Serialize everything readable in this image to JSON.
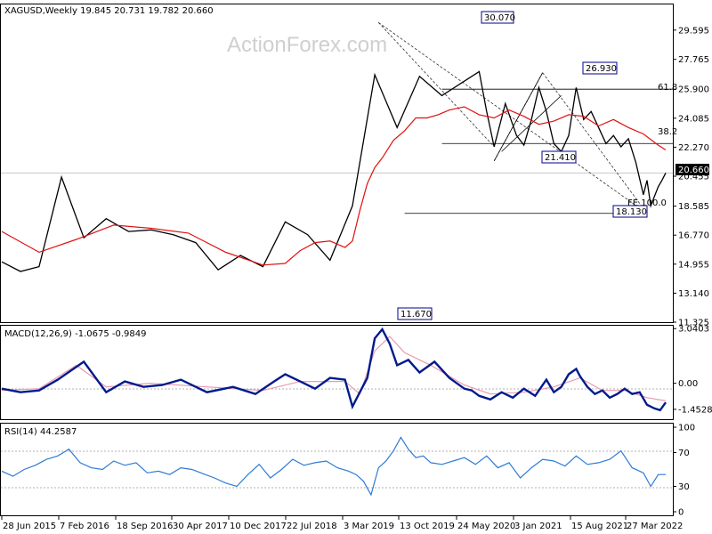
{
  "main_header": "XAGUSD,Weekly  19.845 20.731 19.782 20.660",
  "watermark": "ActionForex.com",
  "macd_header": "MACD(12,26,9) -1.0675 -0.9849",
  "rsi_header": "RSI(14) 44.2587",
  "current_price_label": "20.660",
  "colors": {
    "price": "#000000",
    "ma": "#e01010",
    "macd": "#001a8c",
    "signal": "#e89ab0",
    "rsi": "#2e7bd6",
    "level": "#00008b"
  },
  "chart_data": [
    {
      "type": "line",
      "title": "XAGUSD,Weekly",
      "ylim": [
        11.325,
        31.2
      ],
      "y_ticks": [
        "29.595",
        "27.765",
        "25.900",
        "24.085",
        "22.270",
        "20.455",
        "18.585",
        "16.770",
        "14.955",
        "13.140",
        "11.325"
      ],
      "x_ticks": [
        "28 Jun 2015",
        "7 Feb 2016",
        "18 Sep 2016",
        "30 Apr 2017",
        "10 Dec 2017",
        "22 Jul 2018",
        "3 Mar 2019",
        "13 Oct 2019",
        "24 May 2020",
        "3 Jan 2021",
        "15 Aug 2021",
        "27 Mar 2022"
      ],
      "x_range": [
        0,
        356
      ],
      "series": [
        {
          "name": "Close",
          "x": [
            0,
            10,
            20,
            32,
            44,
            56,
            68,
            80,
            92,
            104,
            116,
            128,
            140,
            152,
            164,
            176,
            188,
            200,
            212,
            224,
            236,
            248,
            256,
            260,
            264,
            270,
            276,
            280,
            284,
            288,
            292,
            296,
            300,
            304,
            308,
            312,
            316,
            320,
            324,
            328,
            332,
            336,
            340,
            344,
            346,
            348,
            350,
            352,
            354,
            356
          ],
          "values": [
            15.1,
            14.5,
            14.8,
            20.4,
            16.6,
            17.8,
            17.0,
            17.1,
            16.8,
            16.3,
            14.6,
            15.5,
            14.8,
            17.6,
            16.8,
            15.2,
            18.6,
            26.8,
            23.5,
            26.7,
            25.5,
            26.4,
            27.0,
            24.5,
            22.3,
            25.0,
            23.0,
            22.4,
            24.0,
            26.0,
            24.5,
            22.5,
            22.0,
            23.0,
            26.0,
            24.0,
            24.5,
            23.5,
            22.5,
            23.0,
            22.3,
            22.8,
            21.3,
            19.3,
            20.2,
            18.6,
            19.2,
            19.8,
            20.2,
            20.66
          ]
        },
        {
          "name": "MA",
          "x": [
            0,
            20,
            40,
            60,
            80,
            100,
            120,
            140,
            152,
            160,
            168,
            176,
            184,
            188,
            192,
            196,
            200,
            204,
            210,
            216,
            222,
            228,
            234,
            240,
            248,
            256,
            264,
            272,
            280,
            288,
            296,
            304,
            312,
            320,
            328,
            336,
            344,
            352,
            356
          ],
          "values": [
            17.0,
            15.7,
            16.5,
            17.4,
            17.2,
            16.9,
            15.7,
            14.9,
            15.0,
            15.8,
            16.3,
            16.4,
            16.0,
            16.4,
            18.3,
            20.0,
            21.0,
            21.6,
            22.7,
            23.3,
            24.1,
            24.1,
            24.3,
            24.6,
            24.8,
            24.3,
            24.1,
            24.6,
            24.2,
            23.7,
            23.9,
            24.3,
            24.2,
            23.6,
            24.0,
            23.5,
            23.1,
            22.4,
            22.1
          ]
        }
      ],
      "annotations": [
        "30.070",
        "26.930",
        "21.410",
        "18.130",
        "11.670",
        "61.8",
        "38.2",
        "FE 100.0"
      ],
      "levels": [
        {
          "label": "61.8",
          "value": 25.9
        },
        {
          "label": "38.2",
          "value": 22.5
        },
        {
          "label": "18.130",
          "value": 18.13
        },
        {
          "label": "21.410",
          "value": 21.41
        }
      ]
    },
    {
      "type": "line",
      "title": "MACD(12,26,9)",
      "ylim": [
        -2.0,
        3.2
      ],
      "y_ticks": [
        "3.0403",
        "0.00",
        "-1.4528"
      ],
      "series": [
        {
          "name": "MACD",
          "x": [
            0,
            10,
            20,
            30,
            44,
            56,
            66,
            76,
            86,
            96,
            110,
            124,
            136,
            146,
            152,
            160,
            168,
            176,
            184,
            188,
            192,
            196,
            200,
            204,
            208,
            212,
            218,
            224,
            232,
            240,
            248,
            252,
            256,
            262,
            268,
            274,
            280,
            286,
            292,
            296,
            300,
            304,
            308,
            310,
            314,
            318,
            322,
            326,
            330,
            334,
            338,
            342,
            346,
            350,
            353,
            356
          ],
          "values": [
            -0.3,
            -0.5,
            -0.4,
            0.2,
            1.2,
            -0.5,
            0.1,
            -0.2,
            -0.1,
            0.2,
            -0.5,
            -0.2,
            -0.6,
            0.1,
            0.5,
            0.1,
            -0.3,
            0.3,
            0.2,
            -1.3,
            -0.5,
            0.3,
            2.5,
            3.0,
            2.2,
            1.0,
            1.3,
            0.6,
            1.2,
            0.3,
            -0.3,
            -0.4,
            -0.7,
            -0.9,
            -0.5,
            -0.8,
            -0.3,
            -0.7,
            0.2,
            -0.5,
            -0.2,
            0.5,
            0.8,
            0.4,
            -0.2,
            -0.6,
            -0.4,
            -0.8,
            -0.6,
            -0.3,
            -0.6,
            -0.5,
            -1.2,
            -1.4,
            -1.5,
            -1.07
          ]
        },
        {
          "name": "Signal",
          "x": [
            0,
            20,
            40,
            56,
            80,
            110,
            140,
            160,
            184,
            192,
            200,
            208,
            216,
            230,
            248,
            262,
            280,
            296,
            310,
            322,
            334,
            346,
            356
          ],
          "values": [
            -0.4,
            -0.3,
            1.0,
            -0.2,
            0.0,
            -0.2,
            -0.4,
            0.1,
            0.1,
            -0.6,
            1.8,
            2.6,
            1.7,
            1.0,
            -0.1,
            -0.6,
            -0.5,
            -0.2,
            0.3,
            -0.4,
            -0.4,
            -0.8,
            -0.98
          ]
        }
      ]
    },
    {
      "type": "line",
      "title": "RSI(14)",
      "ylim": [
        0,
        100
      ],
      "y_ticks": [
        "100",
        "70",
        "30",
        "0"
      ],
      "series": [
        {
          "name": "RSI",
          "x": [
            0,
            6,
            12,
            18,
            24,
            30,
            36,
            42,
            48,
            54,
            60,
            66,
            72,
            78,
            84,
            90,
            96,
            102,
            108,
            114,
            120,
            126,
            132,
            138,
            144,
            150,
            156,
            162,
            168,
            174,
            180,
            186,
            190,
            194,
            198,
            202,
            206,
            210,
            214,
            218,
            222,
            226,
            230,
            236,
            242,
            248,
            254,
            260,
            266,
            272,
            278,
            284,
            290,
            296,
            302,
            308,
            314,
            320,
            326,
            332,
            338,
            344,
            348,
            352,
            356
          ],
          "values": [
            48,
            42,
            50,
            55,
            62,
            66,
            74,
            58,
            52,
            50,
            60,
            55,
            58,
            46,
            48,
            44,
            52,
            50,
            45,
            40,
            34,
            30,
            44,
            56,
            40,
            50,
            62,
            55,
            58,
            60,
            52,
            48,
            44,
            36,
            20,
            52,
            60,
            72,
            88,
            74,
            64,
            66,
            58,
            56,
            60,
            64,
            56,
            66,
            52,
            58,
            40,
            52,
            62,
            60,
            54,
            66,
            56,
            58,
            62,
            72,
            52,
            46,
            30,
            44,
            44
          ]
        }
      ]
    }
  ]
}
